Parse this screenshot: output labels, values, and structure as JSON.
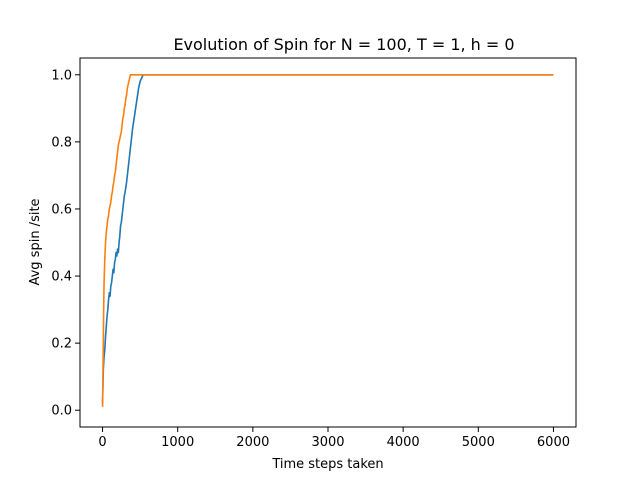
{
  "chart_data": {
    "type": "line",
    "title": "Evolution of Spin for N = 100, T = 1, h = 0",
    "xlabel": "Time steps taken",
    "ylabel": "Avg spin /site",
    "xlim": [
      -300,
      6300
    ],
    "ylim": [
      -0.05,
      1.05
    ],
    "xticks": [
      0,
      1000,
      2000,
      3000,
      4000,
      5000,
      6000
    ],
    "xtick_labels": [
      "0",
      "1000",
      "2000",
      "3000",
      "4000",
      "5000",
      "6000"
    ],
    "yticks": [
      0.0,
      0.2,
      0.4,
      0.6,
      0.8,
      1.0
    ],
    "ytick_labels": [
      "0.0",
      "0.2",
      "0.4",
      "0.6",
      "0.8",
      "1.0"
    ],
    "grid": false,
    "legend": "none",
    "series": [
      {
        "color": "#1f77b4",
        "x": [
          0,
          10,
          20,
          30,
          40,
          50,
          60,
          70,
          80,
          90,
          100,
          110,
          120,
          130,
          140,
          150,
          160,
          170,
          180,
          190,
          200,
          210,
          220,
          230,
          240,
          250,
          260,
          270,
          280,
          290,
          300,
          320,
          340,
          360,
          380,
          400,
          420,
          440,
          460,
          480,
          500,
          520,
          540,
          560,
          600,
          1000,
          2000,
          3000,
          4000,
          5000,
          6000
        ],
        "y": [
          0.02,
          0.12,
          0.16,
          0.18,
          0.22,
          0.25,
          0.28,
          0.3,
          0.33,
          0.35,
          0.34,
          0.37,
          0.38,
          0.4,
          0.42,
          0.41,
          0.44,
          0.45,
          0.47,
          0.46,
          0.48,
          0.47,
          0.5,
          0.52,
          0.55,
          0.56,
          0.58,
          0.6,
          0.62,
          0.64,
          0.65,
          0.68,
          0.72,
          0.76,
          0.8,
          0.84,
          0.87,
          0.9,
          0.93,
          0.96,
          0.98,
          0.99,
          1.0,
          1.0,
          1.0,
          1.0,
          1.0,
          1.0,
          1.0,
          1.0,
          1.0
        ]
      },
      {
        "color": "#ff7f0e",
        "x": [
          0,
          5,
          10,
          15,
          20,
          30,
          40,
          50,
          60,
          70,
          80,
          90,
          100,
          110,
          120,
          130,
          140,
          150,
          160,
          170,
          180,
          190,
          200,
          210,
          220,
          230,
          240,
          250,
          260,
          270,
          280,
          290,
          300,
          310,
          320,
          330,
          340,
          350,
          360,
          370,
          380,
          400,
          500,
          1000,
          2000,
          3000,
          4000,
          5000,
          6000
        ],
        "y": [
          0.01,
          0.1,
          0.2,
          0.3,
          0.38,
          0.45,
          0.5,
          0.53,
          0.55,
          0.57,
          0.58,
          0.6,
          0.61,
          0.62,
          0.64,
          0.65,
          0.67,
          0.68,
          0.7,
          0.71,
          0.73,
          0.75,
          0.77,
          0.79,
          0.8,
          0.81,
          0.82,
          0.83,
          0.85,
          0.87,
          0.88,
          0.9,
          0.91,
          0.93,
          0.94,
          0.96,
          0.97,
          0.98,
          0.99,
          1.0,
          1.0,
          1.0,
          1.0,
          1.0,
          1.0,
          1.0,
          1.0,
          1.0,
          1.0
        ]
      }
    ]
  }
}
